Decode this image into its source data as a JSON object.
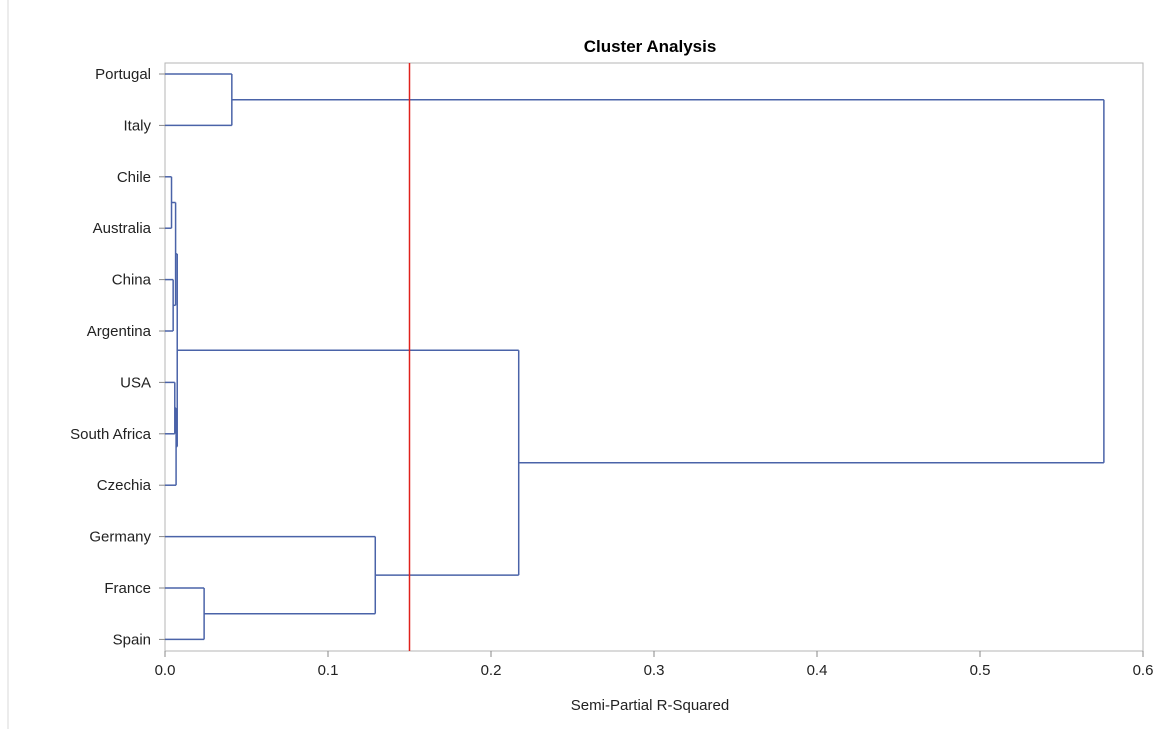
{
  "chart_data": {
    "type": "dendrogram",
    "title": "Cluster Analysis",
    "xlabel": "Semi-Partial R-Squared",
    "ylabel": "",
    "xlim": [
      0.0,
      0.6
    ],
    "x_ticks": [
      0.0,
      0.1,
      0.2,
      0.3,
      0.4,
      0.5,
      0.6
    ],
    "x_tick_labels": [
      "0.0",
      "0.1",
      "0.2",
      "0.3",
      "0.4",
      "0.5",
      "0.6"
    ],
    "leaves": [
      "Portugal",
      "Italy",
      "Chile",
      "Australia",
      "China",
      "Argentina",
      "USA",
      "South Africa",
      "Czechia",
      "Germany",
      "France",
      "Spain"
    ],
    "merges": [
      {
        "a": "Chile",
        "b": "Australia",
        "height": 0.004
      },
      {
        "a": "China",
        "b": "Argentina",
        "height": 0.005
      },
      {
        "a": "USA",
        "b": "South Africa",
        "height": 0.006
      },
      {
        "a": "Chile+Australia",
        "b": "China+Argentina",
        "height": 0.0065
      },
      {
        "a": "USA+South Africa",
        "b": "Czechia",
        "height": 0.0068
      },
      {
        "a": "Chile..Argentina",
        "b": "USA..Czechia",
        "height": 0.0075
      },
      {
        "a": "France",
        "b": "Spain",
        "height": 0.024
      },
      {
        "a": "Portugal",
        "b": "Italy",
        "height": 0.041
      },
      {
        "a": "Germany",
        "b": "France+Spain",
        "height": 0.129
      },
      {
        "a": "Chile..Czechia",
        "b": "Germany..Spain",
        "height": 0.217
      },
      {
        "a": "Portugal+Italy",
        "b": "Chile..Spain",
        "height": 0.576
      }
    ],
    "cutoff": 0.15,
    "colors": {
      "tree": "#4a63a8",
      "cutoff": "#e0211b",
      "frame": "#b5b5b5",
      "text": "#222222"
    }
  }
}
